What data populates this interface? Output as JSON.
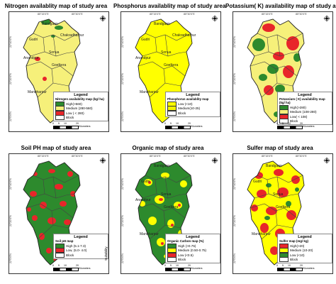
{
  "panels": [
    {
      "title": "Nitrogen availablity map of study area",
      "base": "#f6f07a",
      "legend": {
        "title": "Legend",
        "subtitle": "Nitrogen availability map (kg/ ha)",
        "items": [
          {
            "label": "High(>560)",
            "color": "#2d8a2d"
          },
          {
            "label": "Medium (280-560)",
            "color": "#f6f07a"
          },
          {
            "label": "Low ( < 280)",
            "color": "#e8262a"
          },
          {
            "label": "Block",
            "color": "#ffffff"
          }
        ]
      },
      "places": [
        "Bandgaon",
        "Gudri",
        "Chakradharpur",
        "Sonua",
        "Anandpur",
        "Goelkera",
        "Manoharpur"
      ],
      "scale": "Kilometers"
    },
    {
      "title": "Phosphorus availablity map of study area",
      "base": "#ffff00",
      "legend": {
        "title": "Legend",
        "subtitle": "Phosphorus availablity map",
        "items": [
          {
            "label": "Low (<10)",
            "color": "#ffff00"
          },
          {
            "label": "Medium(10-25)",
            "color": "#f2f200"
          },
          {
            "label": "Block",
            "color": "#ffffff"
          }
        ]
      },
      "places": [
        "Bandgaon",
        "Gudri",
        "Chakradharpur",
        "Sonua",
        "Anandpur",
        "Goelkera",
        "Manoharpur"
      ],
      "scale": "Kilometers"
    },
    {
      "title": "Potassium( K) availability map of study area",
      "base": "#f6f07a",
      "legend": {
        "title": "Legend",
        "subtitle": "Potassium ( K) availability map (kg/ ha)",
        "items": [
          {
            "label": "High(>280)",
            "color": "#2d8a2d"
          },
          {
            "label": "Medium (108-280)",
            "color": "#f6f07a"
          },
          {
            "label": "Low( < 108)",
            "color": "#e8262a"
          },
          {
            "label": "Block",
            "color": "#ffffff"
          }
        ]
      },
      "places": [],
      "scale": "Kilometers"
    },
    {
      "title": "Soil PH map of study area",
      "base": "#2d8a2d",
      "legend": {
        "title": "Legend",
        "subtitle": "Soil pH map",
        "items": [
          {
            "label": "High (5.1-7.3)",
            "color": "#2d8a2d"
          },
          {
            "label": "Low, (5.0- 4.0)",
            "color": "#e8262a"
          },
          {
            "label": "Block",
            "color": "#ffffff"
          }
        ]
      },
      "side_label": "Suitability",
      "places": [],
      "scale": "Kilometers"
    },
    {
      "title": "Organic map of study area",
      "base": "#2d8a2d",
      "legend": {
        "title": "Legend",
        "subtitle": "Organic Carbon map (%)",
        "items": [
          {
            "label": "High (>0.75)",
            "color": "#2d8a2d"
          },
          {
            "label": "Medium (0.50-0.75)",
            "color": "#ffff00"
          },
          {
            "label": "Low (<0.5)",
            "color": "#e8262a"
          },
          {
            "label": "Block",
            "color": "#ffffff"
          }
        ]
      },
      "places": [
        "Bandgaon",
        "Gudri",
        "Sonua",
        "Anandpur",
        "Goelkera",
        "Manoharpur"
      ],
      "scale": "Kilometers"
    },
    {
      "title": "Sulfer map of study area",
      "base": "#ffff00",
      "legend": {
        "title": "Legend",
        "subtitle": "Sulfer map (mg/ kg)",
        "items": [
          {
            "label": "High(>20)",
            "color": "#e8262a"
          },
          {
            "label": "Medium (10-20)",
            "color": "#ffff00"
          },
          {
            "label": "Low (<10)",
            "color": "#2d8a2d"
          },
          {
            "label": "Block",
            "color": "#ffffff"
          }
        ]
      },
      "places": [
        "Bandgaon",
        "Gudri",
        "Sonua",
        "Goelkera",
        "Manoharpur"
      ],
      "scale": "Kilometers"
    }
  ],
  "ticks": {
    "lon": [
      "85°15'0\"E",
      "85°30'0\"E"
    ],
    "lat": [
      "22°40'0\"N",
      "22°20'0\"N",
      "22°0'0\"N"
    ]
  },
  "scale_numbers": [
    "0",
    "5",
    "10",
    "20"
  ]
}
